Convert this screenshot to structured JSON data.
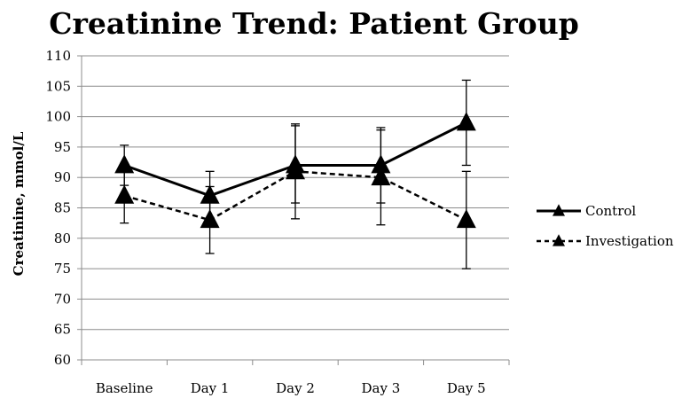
{
  "chart_data": {
    "type": "line",
    "title": "Creatinine Trend: Patient Group",
    "xlabel": "",
    "ylabel": "Creatinine, mmol/L",
    "categories": [
      "Baseline",
      "Day 1",
      "Day 2",
      "Day 3",
      "Day 5"
    ],
    "ylim": [
      60,
      110
    ],
    "yticks": [
      "60",
      "65",
      "70",
      "75",
      "80",
      "85",
      "90",
      "95",
      "100",
      "105",
      "110"
    ],
    "grid": "horizontal",
    "legend": "right",
    "series": [
      {
        "name": "Control",
        "line_style": "solid",
        "marker": "triangle",
        "color": "#000000",
        "values": [
          92,
          87,
          92,
          92,
          99
        ],
        "error_low": [
          88.7,
          83.2,
          85.8,
          85.8,
          92
        ],
        "error_high": [
          95.3,
          91,
          98.8,
          98.2,
          106
        ]
      },
      {
        "name": "Investigation",
        "line_style": "dashed",
        "marker": "triangle",
        "color": "#000000",
        "values": [
          87,
          83,
          91,
          90,
          83
        ],
        "error_low": [
          82.5,
          77.5,
          83.2,
          82.2,
          75
        ],
        "error_high": [
          91.5,
          88.5,
          98.5,
          97.8,
          91
        ]
      }
    ]
  }
}
